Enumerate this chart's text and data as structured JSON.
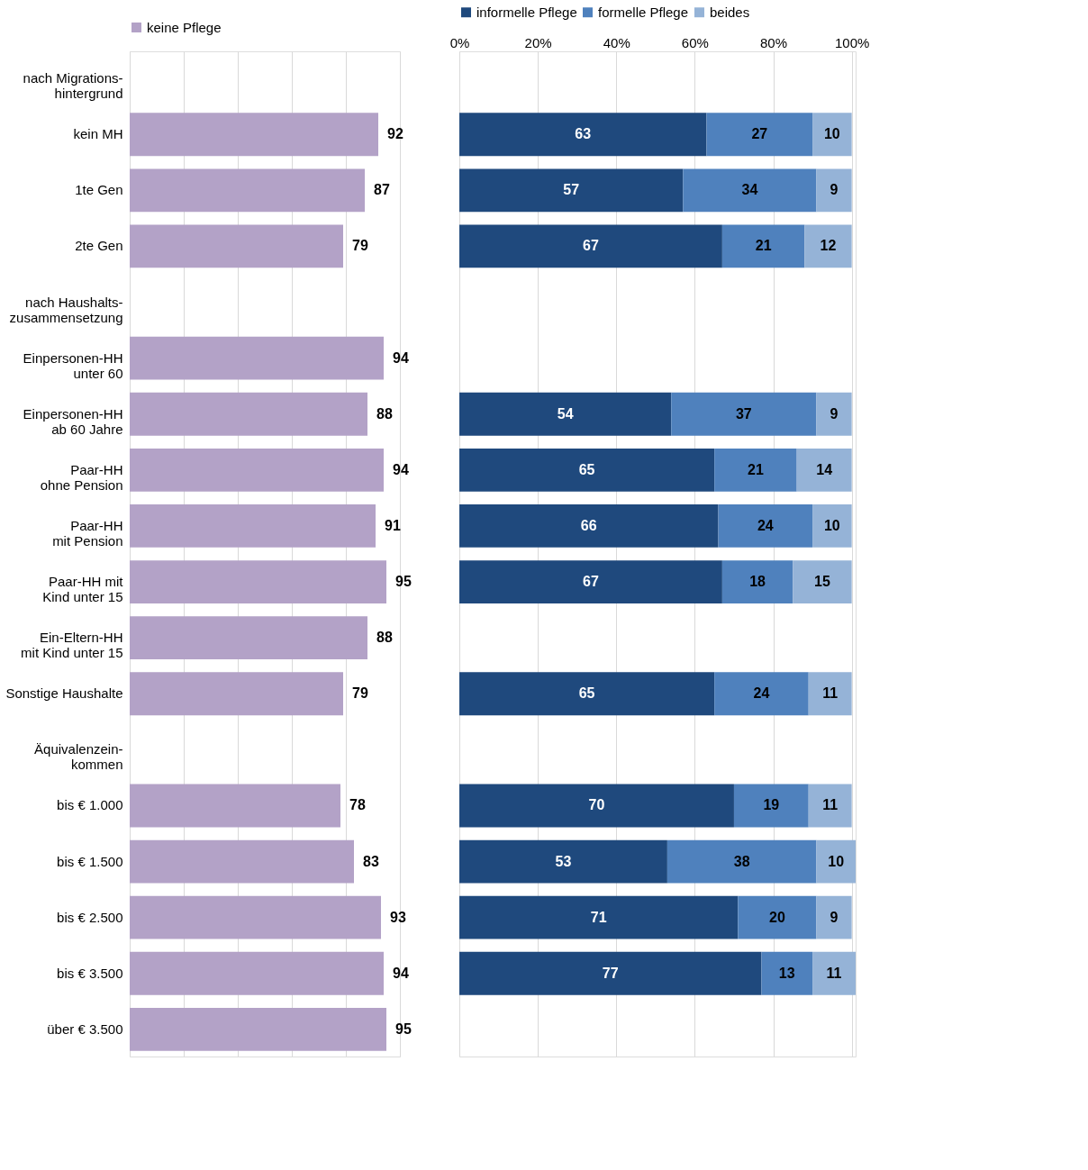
{
  "chart_data": [
    {
      "type": "bar",
      "orientation": "horizontal",
      "categories": [
        "nach Migrations-\nhintergrund",
        "kein MH",
        "1te Gen",
        "2te Gen",
        "nach Haushalts-\nzusammensetzung",
        "Einpersonen-HH\nunter 60",
        "Einpersonen-HH\nab 60 Jahre",
        "Paar-HH\nohne Pension",
        "Paar-HH\nmit Pension",
        "Paar-HH mit\nKind unter 15",
        "Ein-Eltern-HH\nmit Kind unter 15",
        "Sonstige Haushalte",
        "Äquivalenzein-\nkommen",
        "bis € 1.000",
        "bis € 1.500",
        "bis € 2.500",
        "bis € 3.500",
        "über € 3.500"
      ],
      "series": [
        {
          "name": "keine Pflege",
          "color": "#b3a2c7",
          "values": [
            null,
            92,
            87,
            79,
            null,
            94,
            88,
            94,
            91,
            95,
            88,
            79,
            null,
            78,
            83,
            93,
            94,
            95
          ]
        }
      ],
      "xlim": [
        0,
        100
      ],
      "xticks": [
        {
          "value": 0,
          "label": null
        },
        {
          "value": 20,
          "label": null
        },
        {
          "value": 40,
          "label": null
        },
        {
          "value": 60,
          "label": null
        },
        {
          "value": 80,
          "label": null
        },
        {
          "value": 100,
          "label": null
        }
      ],
      "tick_labels": "y",
      "grid": "x",
      "legend": "top",
      "data_labels": true
    },
    {
      "type": "bar",
      "orientation": "horizontal",
      "stacked": true,
      "categories": [
        null,
        null,
        null,
        null,
        null,
        null,
        null,
        null,
        null,
        null,
        null,
        null,
        null,
        null,
        null,
        null,
        null,
        null
      ],
      "series": [
        {
          "name": "informelle Pflege",
          "color": "#1f497d",
          "values": [
            null,
            63,
            57,
            67,
            null,
            null,
            54,
            65,
            66,
            67,
            null,
            65,
            null,
            70,
            53,
            71,
            77,
            null
          ]
        },
        {
          "name": "formelle Pflege",
          "color": "#4f81bd",
          "values": [
            null,
            27,
            34,
            21,
            null,
            null,
            37,
            21,
            24,
            18,
            null,
            24,
            null,
            19,
            38,
            20,
            13,
            null
          ]
        },
        {
          "name": "beides",
          "color": "#95b3d7",
          "values": [
            null,
            10,
            9,
            12,
            null,
            null,
            9,
            14,
            10,
            15,
            null,
            11,
            null,
            11,
            10,
            9,
            11,
            null
          ]
        }
      ],
      "xlim": [
        0,
        101
      ],
      "xticks": [
        {
          "value": 0,
          "label": "0%"
        },
        {
          "value": 20,
          "label": "20%"
        },
        {
          "value": 40,
          "label": "40%"
        },
        {
          "value": 60,
          "label": "60%"
        },
        {
          "value": 80,
          "label": "80%"
        },
        {
          "value": 100,
          "label": "100%"
        }
      ],
      "tick_labels": "x",
      "grid": "x",
      "legend": "top",
      "data_labels": true
    }
  ]
}
